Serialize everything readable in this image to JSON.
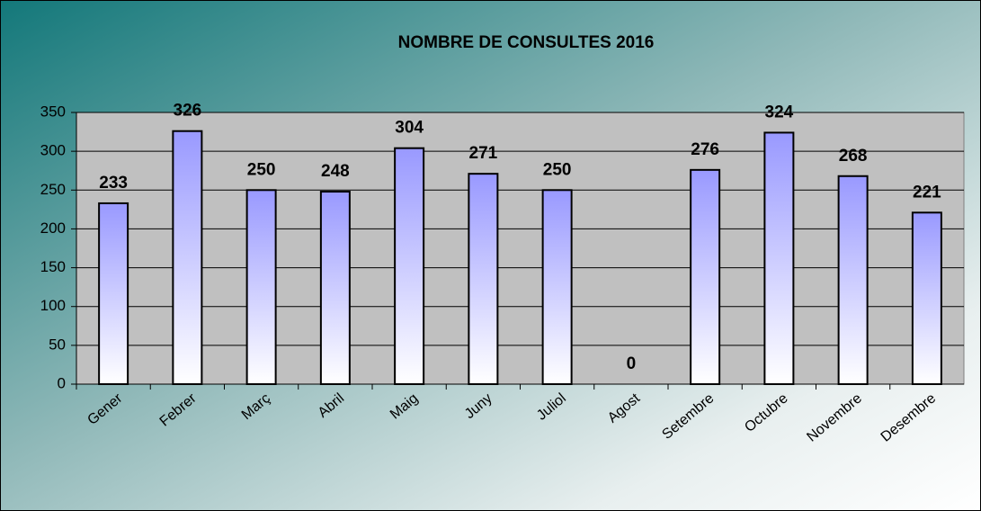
{
  "chart_data": {
    "type": "bar",
    "title": "NOMBRE DE CONSULTES  2016",
    "categories": [
      "Gener",
      "Febrer",
      "Març",
      "Abril",
      "Maig",
      "Juny",
      "Juliol",
      "Agost",
      "Setembre",
      "Octubre",
      "Novembre",
      "Desembre"
    ],
    "values": [
      233,
      326,
      250,
      248,
      304,
      271,
      250,
      0,
      276,
      324,
      268,
      221
    ],
    "color": "#9999ff",
    "ylim": [
      0,
      350
    ],
    "yticks": [
      0,
      50,
      100,
      150,
      200,
      250,
      300,
      350
    ],
    "grid": true
  }
}
